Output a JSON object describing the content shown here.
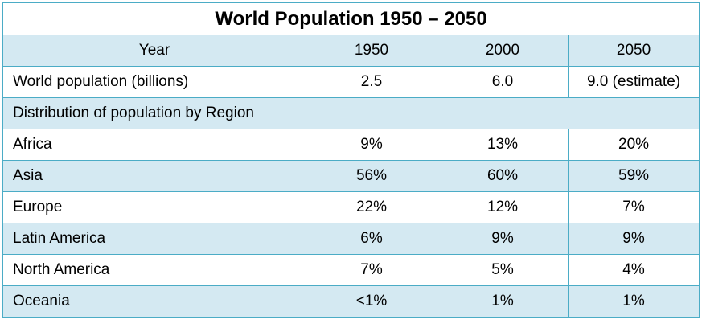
{
  "chart_data": {
    "type": "table",
    "title": "World Population 1950 – 2050",
    "columns": [
      "Year",
      "1950",
      "2000",
      "2050"
    ],
    "world_population": {
      "label": "World population (billions)",
      "values": [
        "2.5",
        "6.0",
        "9.0 (estimate)"
      ]
    },
    "section_label": "Distribution of population by Region",
    "regions": [
      {
        "label": "Africa",
        "values": [
          "9%",
          "13%",
          "20%"
        ]
      },
      {
        "label": "Asia",
        "values": [
          "56%",
          "60%",
          "59%"
        ]
      },
      {
        "label": "Europe",
        "values": [
          "22%",
          "12%",
          "7%"
        ]
      },
      {
        "label": "Latin America",
        "values": [
          "6%",
          "9%",
          "9%"
        ]
      },
      {
        "label": "North America",
        "values": [
          "7%",
          "5%",
          "4%"
        ]
      },
      {
        "label": "Oceania",
        "values": [
          "<1%",
          "1%",
          "1%"
        ]
      }
    ]
  },
  "colors": {
    "border": "#4bacc6",
    "band": "#d4e9f2",
    "plain": "#ffffff"
  }
}
